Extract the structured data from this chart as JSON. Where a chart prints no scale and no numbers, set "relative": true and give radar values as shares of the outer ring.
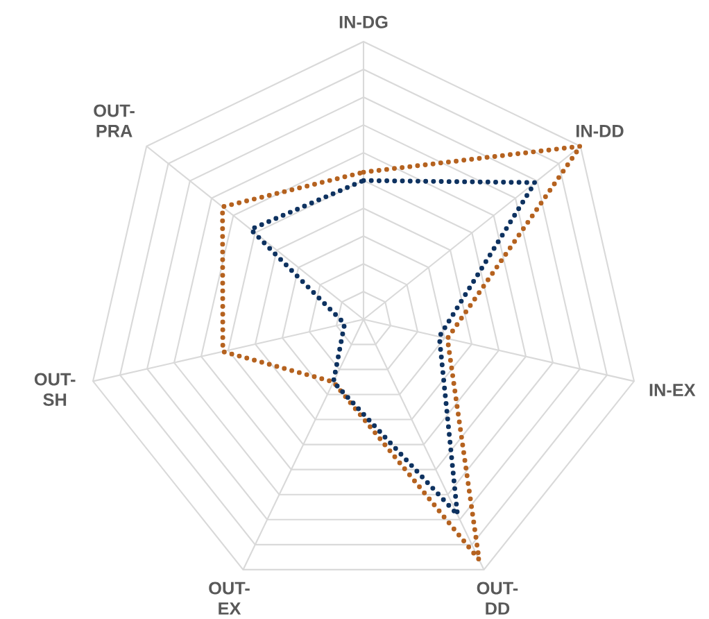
{
  "chart_data": {
    "type": "radar",
    "relative": true,
    "grid": true,
    "line_style": "dotted",
    "marker": "none",
    "categories": [
      "IN-DG",
      "IN-DD",
      "IN-EX",
      "OUT-DD",
      "OUT-EX",
      "OUT-SH",
      "OUT-PRA"
    ],
    "series": [
      {
        "color": "#b5621f",
        "values": [
          0.53,
          1.0,
          0.31,
          0.96,
          0.25,
          0.52,
          0.65
        ]
      },
      {
        "color": "#0e3260",
        "values": [
          0.5,
          0.79,
          0.28,
          0.78,
          0.25,
          0.07,
          0.52
        ]
      }
    ]
  }
}
